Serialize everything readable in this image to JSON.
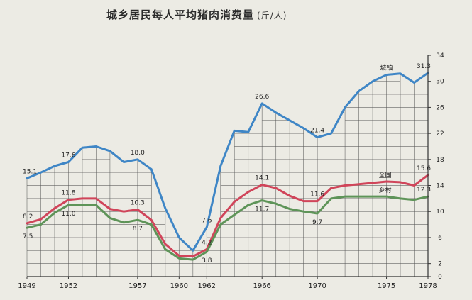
{
  "chart_data": {
    "type": "line",
    "title": "城乡居民每人平均猪肉消费量",
    "unit": "(斤/人)",
    "x_ticks": [
      "1949",
      "1952",
      "1957",
      "1960",
      "1962",
      "1966",
      "1970",
      "1975",
      "1978"
    ],
    "y_ticks": [
      "0",
      "2",
      "6",
      "10",
      "14",
      "18",
      "22",
      "26",
      "30",
      "34"
    ],
    "ylim": [
      0,
      34
    ],
    "xlim": [
      1949,
      1978
    ],
    "series": [
      {
        "name": "城镇",
        "color": "#3f86c6",
        "x": [
          1949,
          1950,
          1951,
          1952,
          1953,
          1954,
          1955,
          1956,
          1957,
          1958,
          1959,
          1960,
          1961,
          1962,
          1963,
          1964,
          1965,
          1966,
          1967,
          1968,
          1969,
          1970,
          1971,
          1972,
          1973,
          1974,
          1975,
          1976,
          1977,
          1978
        ],
        "y": [
          15.1,
          16.0,
          17.0,
          17.6,
          19.8,
          20.0,
          19.3,
          17.6,
          18.0,
          16.5,
          10.5,
          6.0,
          4.0,
          7.6,
          17.0,
          22.4,
          22.2,
          26.6,
          25.2,
          24.0,
          22.8,
          21.4,
          22.0,
          26.0,
          28.5,
          30.0,
          31.0,
          31.2,
          29.8,
          31.3
        ]
      },
      {
        "name": "全国",
        "color": "#d0455a",
        "x": [
          1949,
          1950,
          1951,
          1952,
          1953,
          1954,
          1955,
          1956,
          1957,
          1958,
          1959,
          1960,
          1961,
          1962,
          1963,
          1964,
          1965,
          1966,
          1967,
          1968,
          1969,
          1970,
          1971,
          1972,
          1973,
          1974,
          1975,
          1976,
          1977,
          1978
        ],
        "y": [
          8.2,
          8.8,
          10.5,
          11.8,
          12.0,
          12.0,
          10.4,
          10.0,
          10.3,
          8.7,
          5.0,
          3.2,
          3.1,
          4.2,
          9.0,
          11.5,
          13.0,
          14.1,
          13.6,
          12.4,
          11.6,
          11.6,
          13.6,
          14.0,
          14.2,
          14.4,
          14.6,
          14.5,
          14.0,
          15.6
        ]
      },
      {
        "name": "乡村",
        "color": "#5e9458",
        "x": [
          1949,
          1950,
          1951,
          1952,
          1953,
          1954,
          1955,
          1956,
          1957,
          1958,
          1959,
          1960,
          1961,
          1962,
          1963,
          1964,
          1965,
          1966,
          1967,
          1968,
          1969,
          1970,
          1971,
          1972,
          1973,
          1974,
          1975,
          1976,
          1977,
          1978
        ],
        "y": [
          7.5,
          8.0,
          9.8,
          11.0,
          11.0,
          11.0,
          9.0,
          8.3,
          8.7,
          8.0,
          4.2,
          2.8,
          2.6,
          3.8,
          8.0,
          9.5,
          11.0,
          11.7,
          11.2,
          10.4,
          10.0,
          9.7,
          12.0,
          12.3,
          12.3,
          12.3,
          12.3,
          12.0,
          11.8,
          12.3
        ]
      }
    ],
    "annotations": [
      {
        "text": "15.1",
        "x": 1949,
        "y": 15.1
      },
      {
        "text": "17.6",
        "x": 1952,
        "y": 17.6
      },
      {
        "text": "18.0",
        "x": 1957,
        "y": 18.0
      },
      {
        "text": "7.6",
        "x": 1962,
        "y": 7.6
      },
      {
        "text": "26.6",
        "x": 1966,
        "y": 26.6
      },
      {
        "text": "21.4",
        "x": 1970,
        "y": 21.4
      },
      {
        "text": "城镇",
        "x": 1975,
        "y": 31.0
      },
      {
        "text": "31.3",
        "x": 1978,
        "y": 31.3
      },
      {
        "text": "8.2",
        "x": 1949,
        "y": 8.2
      },
      {
        "text": "11.8",
        "x": 1952,
        "y": 11.8
      },
      {
        "text": "10.3",
        "x": 1957,
        "y": 10.3
      },
      {
        "text": "4.2",
        "x": 1962,
        "y": 4.2
      },
      {
        "text": "14.1",
        "x": 1966,
        "y": 14.1
      },
      {
        "text": "11.6",
        "x": 1970,
        "y": 11.6
      },
      {
        "text": "全国",
        "x": 1975,
        "y": 14.6
      },
      {
        "text": "15.6",
        "x": 1978,
        "y": 15.6
      },
      {
        "text": "7.5",
        "x": 1949,
        "y": 7.5
      },
      {
        "text": "11.0",
        "x": 1952,
        "y": 11.0
      },
      {
        "text": "8.7",
        "x": 1957,
        "y": 8.7
      },
      {
        "text": "3.8",
        "x": 1962,
        "y": 3.8
      },
      {
        "text": "11.7",
        "x": 1966,
        "y": 11.7
      },
      {
        "text": "9.7",
        "x": 1970,
        "y": 9.7
      },
      {
        "text": "乡村",
        "x": 1975,
        "y": 12.3
      },
      {
        "text": "12.3",
        "x": 1978,
        "y": 12.3
      }
    ],
    "grid": true
  }
}
